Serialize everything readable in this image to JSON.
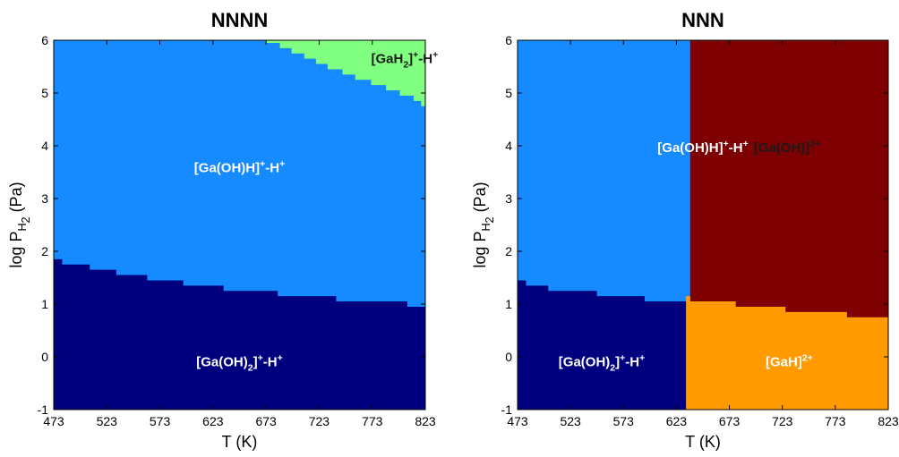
{
  "chart_data": [
    {
      "type": "phase",
      "title": "NNNN",
      "xlabel": "T (K)",
      "ylabel": [
        {
          "text": "log P"
        },
        {
          "text": "H",
          "shift": "sub"
        },
        {
          "text": "2",
          "shift": "subsub"
        },
        {
          "text": " (Pa)"
        }
      ],
      "xlim": [
        473,
        823
      ],
      "ylim": [
        -1,
        6
      ],
      "xticks": [
        473,
        523,
        573,
        623,
        673,
        723,
        773,
        823
      ],
      "yticks": [
        -1,
        0,
        1,
        2,
        3,
        4,
        5,
        6
      ],
      "regions": [
        {
          "color": "#168aff",
          "label": [
            {
              "text": "[Ga(OH)H]"
            },
            {
              "text": "+",
              "shift": "sup"
            },
            {
              "text": "-H"
            },
            {
              "text": "+",
              "shift": "sup"
            }
          ],
          "x": [
            473,
            823,
            823,
            473
          ],
          "y": [
            -1,
            -1,
            6,
            6
          ]
        },
        {
          "color": "#00007f",
          "label": [
            {
              "text": "[Ga(OH)"
            },
            {
              "text": "2",
              "shift": "sub"
            },
            {
              "text": "]"
            },
            {
              "text": "+",
              "shift": "sup"
            },
            {
              "text": "-H"
            },
            {
              "text": "+",
              "shift": "sup"
            }
          ],
          "x": [
            473,
            823,
            823,
            806,
            806,
            739,
            739,
            684,
            684,
            633,
            633,
            595,
            595,
            561,
            561,
            532,
            532,
            507,
            507,
            481,
            481,
            473
          ],
          "y": [
            -1,
            -1,
            0.95,
            0.95,
            1.05,
            1.05,
            1.15,
            1.15,
            1.25,
            1.25,
            1.35,
            1.35,
            1.45,
            1.45,
            1.55,
            1.55,
            1.65,
            1.65,
            1.75,
            1.75,
            1.85,
            1.85
          ]
        },
        {
          "color": "#80ff80",
          "label": [
            {
              "text": "[GaH"
            },
            {
              "text": "2",
              "shift": "sub"
            },
            {
              "text": "]"
            },
            {
              "text": "+",
              "shift": "sup"
            },
            {
              "text": "-H"
            },
            {
              "text": "+",
              "shift": "sup"
            }
          ],
          "x": [
            673,
            823,
            823,
            819,
            819,
            812,
            812,
            799,
            799,
            786,
            786,
            772,
            772,
            757,
            757,
            745,
            745,
            731,
            731,
            720,
            720,
            709,
            709,
            697,
            697,
            686,
            686,
            673
          ],
          "y": [
            6,
            6,
            4.75,
            4.75,
            4.85,
            4.85,
            4.95,
            4.95,
            5.05,
            5.05,
            5.15,
            5.15,
            5.25,
            5.25,
            5.35,
            5.35,
            5.45,
            5.45,
            5.55,
            5.55,
            5.65,
            5.65,
            5.75,
            5.75,
            5.85,
            5.85,
            5.95,
            5.95
          ]
        }
      ]
    },
    {
      "type": "phase",
      "title": "NNN",
      "xlabel": "T (K)",
      "ylabel": [
        {
          "text": "log P"
        },
        {
          "text": "H",
          "shift": "sub"
        },
        {
          "text": "2",
          "shift": "subsub"
        },
        {
          "text": " (Pa)"
        }
      ],
      "xlim": [
        473,
        823
      ],
      "ylim": [
        -1,
        6
      ],
      "xticks": [
        473,
        523,
        573,
        623,
        673,
        723,
        773,
        823
      ],
      "yticks": [
        -1,
        0,
        1,
        2,
        3,
        4,
        5,
        6
      ],
      "regions": [
        {
          "color": "#168aff",
          "label": [
            {
              "text": "[Ga(OH)H]"
            },
            {
              "text": "+",
              "shift": "sup"
            },
            {
              "text": "-H"
            },
            {
              "text": "+",
              "shift": "sup"
            }
          ],
          "x": [
            473,
            823,
            823,
            473
          ],
          "y": [
            -1,
            -1,
            6,
            6
          ]
        },
        {
          "color": "#7f0000",
          "label": [
            {
              "text": "[GaH]"
            },
            {
              "text": "2+",
              "shift": "sup"
            }
          ],
          "x": [
            636,
            823,
            823,
            636
          ],
          "y": [
            -1,
            -1,
            6,
            6
          ]
        },
        {
          "color": "#ff9b00",
          "label": [
            {
              "text": "[Ga(OH)]"
            },
            {
              "text": "2+",
              "shift": "sup"
            }
          ],
          "x": [
            632,
            823,
            823,
            784,
            784,
            726,
            726,
            679,
            679,
            636,
            636,
            632
          ],
          "y": [
            -1,
            -1,
            0.75,
            0.75,
            0.85,
            0.85,
            0.95,
            0.95,
            1.05,
            1.05,
            1.15,
            1.15
          ]
        },
        {
          "color": "#00007f",
          "label": [
            {
              "text": "[Ga(OH)"
            },
            {
              "text": "2",
              "shift": "sub"
            },
            {
              "text": "]"
            },
            {
              "text": "+",
              "shift": "sup"
            },
            {
              "text": "-H"
            },
            {
              "text": "+",
              "shift": "sup"
            }
          ],
          "x": [
            473,
            632,
            632,
            593,
            593,
            548,
            548,
            502,
            502,
            481,
            481,
            473
          ],
          "y": [
            -1,
            -1,
            1.05,
            1.05,
            1.15,
            1.15,
            1.25,
            1.25,
            1.35,
            1.35,
            1.45,
            1.45
          ]
        }
      ]
    }
  ]
}
